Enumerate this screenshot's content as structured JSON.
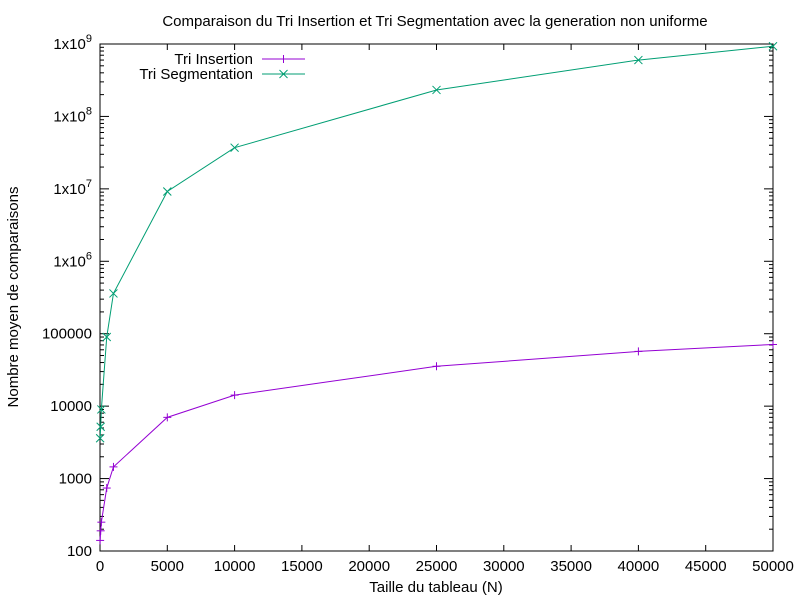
{
  "chart_data": {
    "type": "line",
    "title": "Comparaison du Tri Insertion et Tri Segmentation avec la generation non uniforme",
    "xlabel": "Taille du tableau (N)",
    "ylabel": "Nombre moyen de comparaisons",
    "xlim": [
      0,
      50000
    ],
    "ylim": [
      100,
      1000000000
    ],
    "y_scale": "log",
    "grid": false,
    "legend_position": "top-left",
    "x_ticks": [
      "0",
      "5000",
      "10000",
      "15000",
      "20000",
      "25000",
      "30000",
      "35000",
      "40000",
      "45000",
      "50000"
    ],
    "y_ticks": [
      {
        "base": "100",
        "sup": ""
      },
      {
        "base": "1000",
        "sup": ""
      },
      {
        "base": "10000",
        "sup": ""
      },
      {
        "base": "100000",
        "sup": ""
      },
      {
        "base": "1x10",
        "sup": "6"
      },
      {
        "base": "1x10",
        "sup": "7"
      },
      {
        "base": "1x10",
        "sup": "8"
      },
      {
        "base": "1x10",
        "sup": "9"
      }
    ],
    "series": [
      {
        "name": "Tri Insertion",
        "color": "#9400d3",
        "marker": "plus",
        "points": [
          [
            10,
            140
          ],
          [
            50,
            190
          ],
          [
            100,
            250
          ],
          [
            500,
            740
          ],
          [
            1000,
            1450
          ],
          [
            5000,
            7000
          ],
          [
            10000,
            14200
          ],
          [
            25000,
            35500
          ],
          [
            40000,
            57000
          ],
          [
            50000,
            71000
          ]
        ]
      },
      {
        "name": "Tri Segmentation",
        "color": "#009e73",
        "marker": "cross",
        "points": [
          [
            10,
            3600
          ],
          [
            50,
            5200
          ],
          [
            100,
            9000
          ],
          [
            500,
            90000
          ],
          [
            1000,
            360000
          ],
          [
            5000,
            9200000
          ],
          [
            10000,
            37000000
          ],
          [
            25000,
            232000000
          ],
          [
            40000,
            600000000
          ],
          [
            50000,
            930000000
          ]
        ]
      }
    ]
  }
}
